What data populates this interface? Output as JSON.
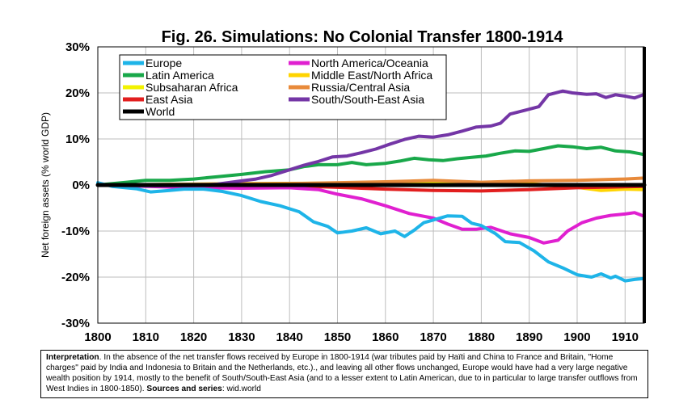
{
  "chart_data": {
    "type": "line",
    "title": "Fig. 26. Simulations: No Colonial Transfer 1800-1914",
    "ylabel": "Net foreign assets (% world GDP)",
    "xlabel": "",
    "xlim": [
      1800,
      1914
    ],
    "ylim": [
      -30,
      30
    ],
    "xticks": [
      "1800",
      "1810",
      "1820",
      "1830",
      "1840",
      "1850",
      "1860",
      "1870",
      "1880",
      "1890",
      "1900",
      "1910"
    ],
    "yticks": [
      "30%",
      "20%",
      "10%",
      "0%",
      "-10%",
      "-20%",
      "-30%"
    ],
    "grid": true,
    "legend_position": "top-left",
    "series": [
      {
        "name": "Europe",
        "color": "#1EB4E8",
        "points": [
          [
            1800,
            0.5
          ],
          [
            1803,
            -0.3
          ],
          [
            1808,
            -0.8
          ],
          [
            1811,
            -1.5
          ],
          [
            1815,
            -1.2
          ],
          [
            1818,
            -0.9
          ],
          [
            1822,
            -0.9
          ],
          [
            1826,
            -1.4
          ],
          [
            1830,
            -2.3
          ],
          [
            1834,
            -3.6
          ],
          [
            1838,
            -4.5
          ],
          [
            1842,
            -5.8
          ],
          [
            1845,
            -8.0
          ],
          [
            1848,
            -9.0
          ],
          [
            1850,
            -10.4
          ],
          [
            1853,
            -10.0
          ],
          [
            1856,
            -9.3
          ],
          [
            1859,
            -10.6
          ],
          [
            1862,
            -10.0
          ],
          [
            1864,
            -11.2
          ],
          [
            1866,
            -9.8
          ],
          [
            1868,
            -8.2
          ],
          [
            1870,
            -7.6
          ],
          [
            1873,
            -6.7
          ],
          [
            1876,
            -6.8
          ],
          [
            1878,
            -8.3
          ],
          [
            1880,
            -8.8
          ],
          [
            1883,
            -10.6
          ],
          [
            1885,
            -12.3
          ],
          [
            1888,
            -12.5
          ],
          [
            1891,
            -14.3
          ],
          [
            1894,
            -16.7
          ],
          [
            1897,
            -18.0
          ],
          [
            1900,
            -19.5
          ],
          [
            1903,
            -20.0
          ],
          [
            1905,
            -19.3
          ],
          [
            1907,
            -20.2
          ],
          [
            1908,
            -19.8
          ],
          [
            1910,
            -20.8
          ],
          [
            1912,
            -20.5
          ],
          [
            1914,
            -20.3
          ]
        ]
      },
      {
        "name": "North America/Oceania",
        "color": "#E020D0",
        "points": [
          [
            1800,
            0
          ],
          [
            1820,
            -0.6
          ],
          [
            1830,
            -0.7
          ],
          [
            1840,
            -0.6
          ],
          [
            1846,
            -1.0
          ],
          [
            1850,
            -2.0
          ],
          [
            1855,
            -3.0
          ],
          [
            1860,
            -4.5
          ],
          [
            1865,
            -6.2
          ],
          [
            1870,
            -7.2
          ],
          [
            1873,
            -8.5
          ],
          [
            1876,
            -9.6
          ],
          [
            1879,
            -9.6
          ],
          [
            1882,
            -9.2
          ],
          [
            1886,
            -10.6
          ],
          [
            1890,
            -11.4
          ],
          [
            1893,
            -12.6
          ],
          [
            1896,
            -12.0
          ],
          [
            1898,
            -10.0
          ],
          [
            1901,
            -8.2
          ],
          [
            1904,
            -7.2
          ],
          [
            1907,
            -6.6
          ],
          [
            1910,
            -6.3
          ],
          [
            1912,
            -6.0
          ],
          [
            1914,
            -6.8
          ]
        ]
      },
      {
        "name": "Latin America",
        "color": "#19A84A",
        "points": [
          [
            1800,
            0
          ],
          [
            1806,
            0.6
          ],
          [
            1810,
            1.0
          ],
          [
            1815,
            1.0
          ],
          [
            1820,
            1.3
          ],
          [
            1825,
            1.8
          ],
          [
            1830,
            2.3
          ],
          [
            1835,
            2.9
          ],
          [
            1840,
            3.3
          ],
          [
            1843,
            4.0
          ],
          [
            1846,
            4.4
          ],
          [
            1850,
            4.4
          ],
          [
            1853,
            4.9
          ],
          [
            1856,
            4.4
          ],
          [
            1860,
            4.7
          ],
          [
            1863,
            5.2
          ],
          [
            1866,
            5.8
          ],
          [
            1869,
            5.5
          ],
          [
            1872,
            5.3
          ],
          [
            1875,
            5.7
          ],
          [
            1878,
            6.0
          ],
          [
            1881,
            6.3
          ],
          [
            1884,
            6.9
          ],
          [
            1887,
            7.4
          ],
          [
            1890,
            7.3
          ],
          [
            1893,
            7.9
          ],
          [
            1896,
            8.5
          ],
          [
            1899,
            8.3
          ],
          [
            1902,
            7.9
          ],
          [
            1905,
            8.2
          ],
          [
            1908,
            7.4
          ],
          [
            1911,
            7.2
          ],
          [
            1913,
            6.8
          ],
          [
            1914,
            6.6
          ]
        ]
      },
      {
        "name": "Middle East/North Africa",
        "color": "#FFD400",
        "points": [
          [
            1800,
            0
          ],
          [
            1830,
            0.3
          ],
          [
            1850,
            0.4
          ],
          [
            1870,
            0.4
          ],
          [
            1890,
            0.3
          ],
          [
            1900,
            -0.5
          ],
          [
            1905,
            -1.2
          ],
          [
            1910,
            -0.9
          ],
          [
            1914,
            -1.0
          ]
        ]
      },
      {
        "name": "Subsaharan Africa",
        "color": "#F2F200",
        "points": [
          [
            1800,
            0
          ],
          [
            1850,
            0.2
          ],
          [
            1880,
            0.3
          ],
          [
            1900,
            -0.3
          ],
          [
            1914,
            -0.6
          ]
        ]
      },
      {
        "name": "Russia/Central Asia",
        "color": "#E88A3A",
        "points": [
          [
            1800,
            0
          ],
          [
            1840,
            0.3
          ],
          [
            1860,
            0.7
          ],
          [
            1870,
            1.0
          ],
          [
            1880,
            0.6
          ],
          [
            1890,
            0.9
          ],
          [
            1900,
            1.0
          ],
          [
            1910,
            1.3
          ],
          [
            1914,
            1.5
          ]
        ]
      },
      {
        "name": "East Asia",
        "color": "#E21E1E",
        "points": [
          [
            1800,
            0
          ],
          [
            1840,
            -0.2
          ],
          [
            1850,
            -0.5
          ],
          [
            1860,
            -0.9
          ],
          [
            1870,
            -1.2
          ],
          [
            1880,
            -1.3
          ],
          [
            1890,
            -1.0
          ],
          [
            1900,
            -0.6
          ],
          [
            1910,
            -0.4
          ],
          [
            1914,
            -0.3
          ]
        ]
      },
      {
        "name": "South/South-East Asia",
        "color": "#7436A6",
        "points": [
          [
            1800,
            0
          ],
          [
            1810,
            -0.2
          ],
          [
            1820,
            -0.1
          ],
          [
            1825,
            0.2
          ],
          [
            1830,
            0.9
          ],
          [
            1833,
            1.3
          ],
          [
            1836,
            2.0
          ],
          [
            1840,
            3.3
          ],
          [
            1843,
            4.3
          ],
          [
            1846,
            5.1
          ],
          [
            1849,
            6.1
          ],
          [
            1852,
            6.3
          ],
          [
            1855,
            7.0
          ],
          [
            1858,
            7.8
          ],
          [
            1861,
            8.9
          ],
          [
            1864,
            9.9
          ],
          [
            1867,
            10.6
          ],
          [
            1870,
            10.4
          ],
          [
            1873,
            10.9
          ],
          [
            1876,
            11.7
          ],
          [
            1879,
            12.6
          ],
          [
            1882,
            12.8
          ],
          [
            1884,
            13.4
          ],
          [
            1886,
            15.4
          ],
          [
            1889,
            16.2
          ],
          [
            1892,
            17.0
          ],
          [
            1894,
            19.6
          ],
          [
            1897,
            20.4
          ],
          [
            1899,
            20.0
          ],
          [
            1902,
            19.7
          ],
          [
            1904,
            19.8
          ],
          [
            1906,
            19.0
          ],
          [
            1908,
            19.6
          ],
          [
            1910,
            19.3
          ],
          [
            1912,
            18.9
          ],
          [
            1914,
            19.7
          ]
        ]
      },
      {
        "name": "World",
        "color": "#000000",
        "points": [
          [
            1800,
            0
          ],
          [
            1914,
            0
          ]
        ]
      }
    ],
    "legend": [
      {
        "name": "Europe",
        "color": "#1EB4E8"
      },
      {
        "name": "North America/Oceania",
        "color": "#E020D0"
      },
      {
        "name": "Latin America",
        "color": "#19A84A"
      },
      {
        "name": "Middle East/North Africa",
        "color": "#FFD400"
      },
      {
        "name": "Subsaharan Africa",
        "color": "#F2F200"
      },
      {
        "name": "Russia/Central Asia",
        "color": "#E88A3A"
      },
      {
        "name": "East Asia",
        "color": "#E21E1E"
      },
      {
        "name": "South/South-East Asia",
        "color": "#7436A6"
      },
      {
        "name": "World",
        "color": "#000000"
      }
    ]
  },
  "caption": {
    "lead": "Interpretation",
    "text": ". In the absence of the net transfer flows received by Europe in 1800-1914 (war tributes paid by Haïti and China to France and Britain, \"Home charges\" paid by India and Indonesia to Britain and the Netherlands, etc.).,  and leaving all other flows unchanged, Europe would have had a very large negative wealth position by 1914, mostly to the benefit of South/South-East  Asia (and to a lesser extent to Latin American, due to in particular to large transfer outflows from West Indies in 1800-1850). ",
    "sources_label": "Sources and series",
    "sources_value": ": wid.world"
  }
}
